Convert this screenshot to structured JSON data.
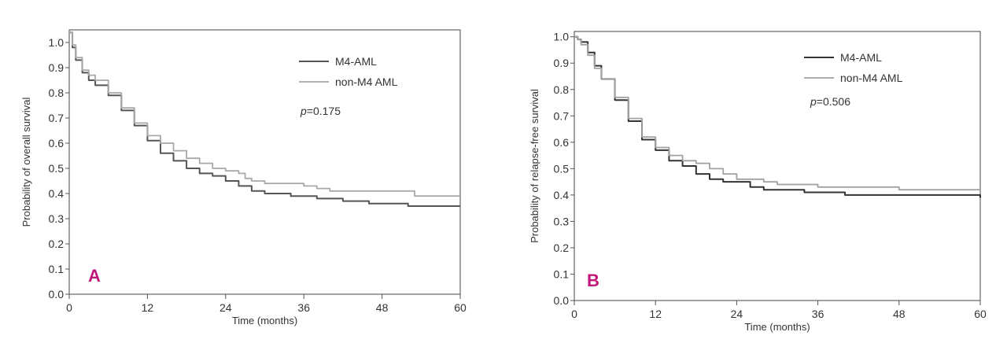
{
  "chart_data": [
    {
      "type": "line",
      "panel_label": "A",
      "xlabel": "Time (months)",
      "ylabel": "Probability of overall survival",
      "xlim": [
        0,
        60
      ],
      "ylim": [
        0,
        1.05
      ],
      "x_ticks": [
        0,
        12,
        24,
        36,
        48,
        60
      ],
      "y_ticks": [
        "0.0",
        "0.1",
        "0.2",
        "0.3",
        "0.4",
        "0.5",
        "0.6",
        "0.7",
        "0.8",
        "0.9",
        "1.0"
      ],
      "legend_position": "top-right",
      "annotation": {
        "p_label": "p",
        "p_value": "=0.175"
      },
      "series": [
        {
          "name": "M4-AML",
          "color": "#555555",
          "points": [
            [
              0,
              1.04
            ],
            [
              0.5,
              0.98
            ],
            [
              1,
              0.93
            ],
            [
              2,
              0.88
            ],
            [
              3,
              0.85
            ],
            [
              4,
              0.83
            ],
            [
              6,
              0.79
            ],
            [
              8,
              0.73
            ],
            [
              10,
              0.67
            ],
            [
              12,
              0.61
            ],
            [
              14,
              0.56
            ],
            [
              16,
              0.53
            ],
            [
              18,
              0.5
            ],
            [
              20,
              0.48
            ],
            [
              22,
              0.47
            ],
            [
              24,
              0.45
            ],
            [
              26,
              0.43
            ],
            [
              28,
              0.41
            ],
            [
              30,
              0.4
            ],
            [
              32,
              0.4
            ],
            [
              34,
              0.39
            ],
            [
              36,
              0.39
            ],
            [
              38,
              0.38
            ],
            [
              40,
              0.38
            ],
            [
              42,
              0.37
            ],
            [
              44,
              0.37
            ],
            [
              46,
              0.36
            ],
            [
              48,
              0.36
            ],
            [
              50,
              0.36
            ],
            [
              52,
              0.35
            ],
            [
              55,
              0.35
            ],
            [
              60,
              0.35
            ]
          ]
        },
        {
          "name": "non-M4 AML",
          "color": "#a8a8a8",
          "points": [
            [
              0,
              1.04
            ],
            [
              0.5,
              0.99
            ],
            [
              1,
              0.94
            ],
            [
              2,
              0.89
            ],
            [
              3,
              0.87
            ],
            [
              4,
              0.85
            ],
            [
              6,
              0.8
            ],
            [
              8,
              0.74
            ],
            [
              10,
              0.68
            ],
            [
              12,
              0.63
            ],
            [
              14,
              0.6
            ],
            [
              16,
              0.57
            ],
            [
              18,
              0.54
            ],
            [
              20,
              0.52
            ],
            [
              22,
              0.5
            ],
            [
              24,
              0.49
            ],
            [
              26,
              0.48
            ],
            [
              27,
              0.46
            ],
            [
              28,
              0.45
            ],
            [
              30,
              0.44
            ],
            [
              33,
              0.44
            ],
            [
              36,
              0.43
            ],
            [
              38,
              0.42
            ],
            [
              40,
              0.41
            ],
            [
              44,
              0.41
            ],
            [
              48,
              0.41
            ],
            [
              50,
              0.41
            ],
            [
              53,
              0.39
            ],
            [
              56,
              0.39
            ],
            [
              60,
              0.39
            ]
          ]
        }
      ]
    },
    {
      "type": "line",
      "panel_label": "B",
      "xlabel": "Time (months)",
      "ylabel": "Probability of relapse-free survival",
      "xlim": [
        0,
        60
      ],
      "ylim": [
        0,
        1.02
      ],
      "x_ticks": [
        0,
        12,
        24,
        36,
        48,
        60
      ],
      "y_ticks": [
        "0.0",
        "0.1",
        "0.2",
        "0.3",
        "0.4",
        "0.5",
        "0.6",
        "0.7",
        "0.8",
        "0.9",
        "1.0"
      ],
      "legend_position": "top-right",
      "annotation": {
        "p_label": "p",
        "p_value": "=0.506"
      },
      "series": [
        {
          "name": "M4-AML",
          "color": "#333333",
          "points": [
            [
              0,
              1.0
            ],
            [
              0.5,
              0.99
            ],
            [
              1,
              0.98
            ],
            [
              2,
              0.94
            ],
            [
              3,
              0.89
            ],
            [
              4,
              0.84
            ],
            [
              6,
              0.76
            ],
            [
              8,
              0.68
            ],
            [
              10,
              0.61
            ],
            [
              12,
              0.57
            ],
            [
              14,
              0.53
            ],
            [
              16,
              0.51
            ],
            [
              18,
              0.48
            ],
            [
              20,
              0.46
            ],
            [
              22,
              0.45
            ],
            [
              24,
              0.45
            ],
            [
              26,
              0.43
            ],
            [
              28,
              0.42
            ],
            [
              30,
              0.42
            ],
            [
              32,
              0.42
            ],
            [
              34,
              0.41
            ],
            [
              36,
              0.41
            ],
            [
              38,
              0.41
            ],
            [
              40,
              0.4
            ],
            [
              45,
              0.4
            ],
            [
              50,
              0.4
            ],
            [
              55,
              0.4
            ],
            [
              58,
              0.4
            ],
            [
              60,
              0.39
            ]
          ]
        },
        {
          "name": "non-M4 AML",
          "color": "#a0a0a0",
          "points": [
            [
              0,
              1.0
            ],
            [
              0.5,
              0.99
            ],
            [
              1,
              0.97
            ],
            [
              2,
              0.93
            ],
            [
              3,
              0.88
            ],
            [
              4,
              0.84
            ],
            [
              6,
              0.77
            ],
            [
              8,
              0.69
            ],
            [
              10,
              0.62
            ],
            [
              12,
              0.58
            ],
            [
              14,
              0.55
            ],
            [
              16,
              0.53
            ],
            [
              18,
              0.52
            ],
            [
              20,
              0.5
            ],
            [
              22,
              0.48
            ],
            [
              24,
              0.46
            ],
            [
              26,
              0.46
            ],
            [
              28,
              0.45
            ],
            [
              30,
              0.44
            ],
            [
              33,
              0.44
            ],
            [
              36,
              0.43
            ],
            [
              40,
              0.43
            ],
            [
              44,
              0.43
            ],
            [
              47,
              0.43
            ],
            [
              48,
              0.42
            ],
            [
              52,
              0.42
            ],
            [
              56,
              0.42
            ],
            [
              60,
              0.42
            ]
          ]
        }
      ]
    }
  ]
}
